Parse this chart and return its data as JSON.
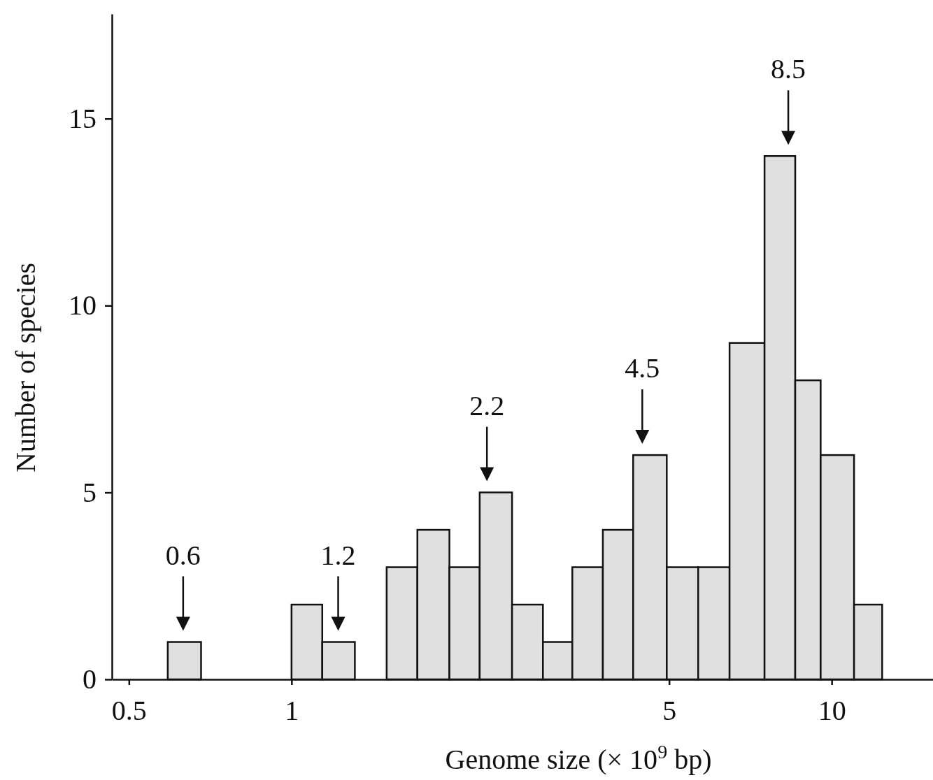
{
  "chart_data": {
    "type": "histogram",
    "xlabel": "Genome size (× 10$^{9}$ bp)",
    "ylabel": "Number of species",
    "bins": [
      0.59,
      0.68,
      1.0,
      1.14,
      1.31,
      1.5,
      1.71,
      1.96,
      2.23,
      2.56,
      2.92,
      3.31,
      3.77,
      4.29,
      4.95,
      5.66,
      6.47,
      7.51,
      8.56,
      9.54,
      11.0,
      12.4
    ],
    "values": [
      1,
      0,
      2,
      1,
      0,
      3,
      4,
      3,
      5,
      2,
      1,
      3,
      4,
      6,
      3,
      3,
      9,
      14,
      8,
      6,
      2
    ],
    "color": "#e0e0e0",
    "log": "x",
    "xlim": [
      0.465,
      15.4
    ],
    "xticks": [
      0.5,
      1,
      5,
      10
    ],
    "ylim": [
      0,
      17.8
    ],
    "yticks": [
      0,
      5,
      10,
      15
    ],
    "grid": false,
    "annotations": [
      {
        "text": "0.6",
        "x": 0.63,
        "y": 1
      },
      {
        "text": "1.2",
        "x": 1.22,
        "y": 1
      },
      {
        "text": "2.2",
        "x": 2.3,
        "y": 5
      },
      {
        "text": "4.5",
        "x": 4.46,
        "y": 6
      },
      {
        "text": "8.5",
        "x": 8.31,
        "y": 14
      }
    ]
  }
}
